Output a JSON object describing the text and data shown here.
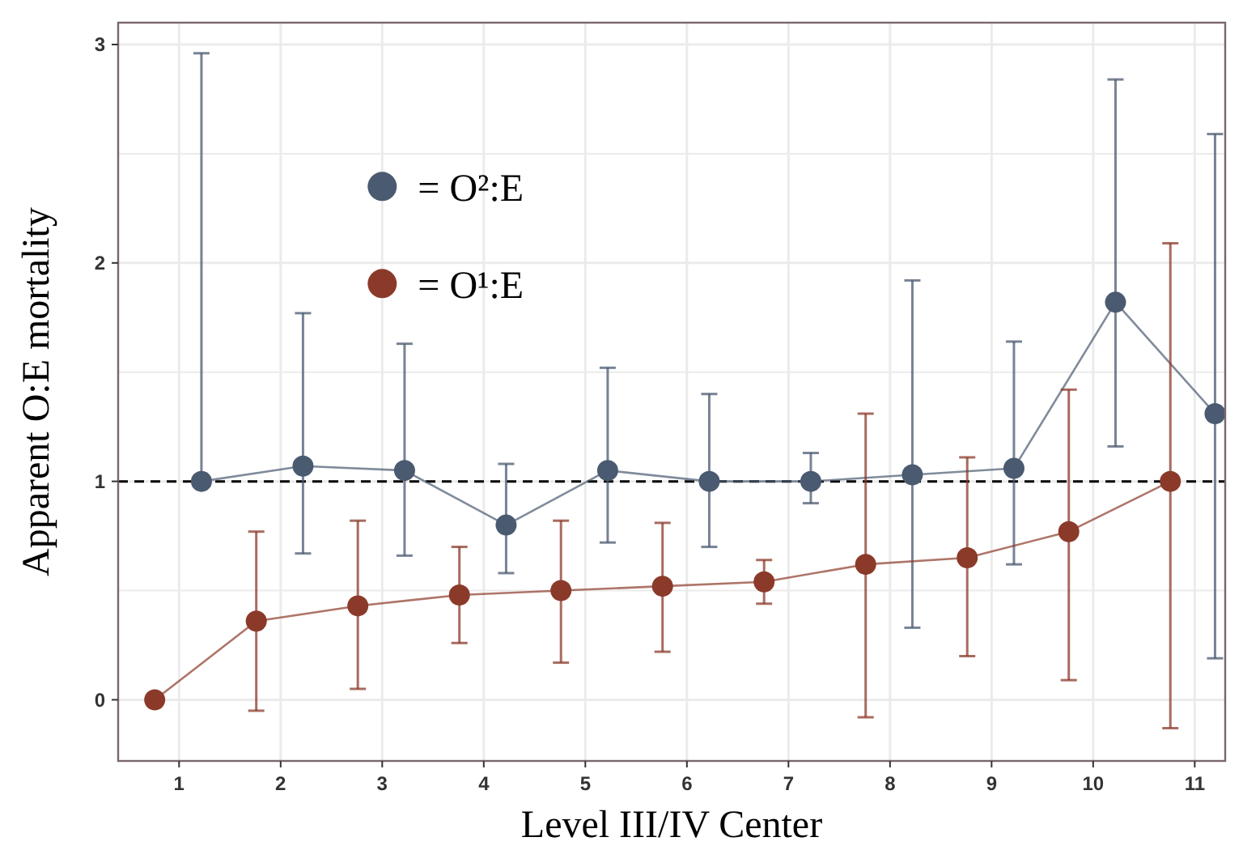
{
  "chart_data": {
    "type": "line",
    "xlabel": "Level III/IV Center",
    "ylabel": "Apparent O:E mortality",
    "xlim": [
      0.4,
      11.3
    ],
    "xticks": [
      1,
      2,
      3,
      4,
      5,
      6,
      7,
      8,
      9,
      10,
      11
    ],
    "ylim": [
      -0.28,
      3.1
    ],
    "yticks": [
      0,
      {
        "value": 0.5,
        "label": null
      },
      1,
      {
        "value": 1.5,
        "label": null
      },
      2,
      {
        "value": 2.5,
        "label": null
      },
      3
    ],
    "grid": true,
    "legend": "top left",
    "marker": "circle",
    "line_style": "solid",
    "ref_lines": [
      {
        "axis": "y",
        "value": 1,
        "line_style": "dashed",
        "color": "#000000"
      }
    ],
    "series": [
      {
        "name": "= O²:E",
        "color": "#4a5a70",
        "x": [
          1.22,
          2.22,
          3.22,
          4.22,
          5.22,
          6.22,
          7.22,
          8.22,
          9.22,
          10.22,
          11.2
        ],
        "values": [
          1.0,
          1.07,
          1.05,
          0.8,
          1.05,
          1.0,
          1.0,
          1.03,
          1.06,
          1.82,
          1.31
        ],
        "errors": [
          [
            1.0,
            2.96
          ],
          [
            0.67,
            1.77
          ],
          [
            0.66,
            1.63
          ],
          [
            0.58,
            1.08
          ],
          [
            0.72,
            1.52
          ],
          [
            0.7,
            1.4
          ],
          [
            0.9,
            1.13
          ],
          [
            0.33,
            1.92
          ],
          [
            0.62,
            1.64
          ],
          [
            1.16,
            2.84
          ],
          [
            0.19,
            2.59
          ]
        ]
      },
      {
        "name": "= O¹:E",
        "color": "#8b3a2a",
        "x": [
          0.76,
          1.76,
          2.76,
          3.76,
          4.76,
          5.76,
          6.76,
          7.76,
          8.76,
          9.76,
          10.76
        ],
        "values": [
          0,
          0.36,
          0.43,
          0.48,
          0.5,
          0.52,
          0.54,
          0.62,
          0.65,
          0.77,
          1.0
        ],
        "errors": [
          null,
          [
            -0.05,
            0.77
          ],
          [
            0.05,
            0.82
          ],
          [
            0.26,
            0.7
          ],
          [
            0.17,
            0.82
          ],
          [
            0.22,
            0.81
          ],
          [
            0.44,
            0.64
          ],
          [
            -0.08,
            1.31
          ],
          [
            0.2,
            1.11
          ],
          [
            0.09,
            1.42
          ],
          [
            -0.13,
            2.09
          ]
        ]
      }
    ]
  }
}
